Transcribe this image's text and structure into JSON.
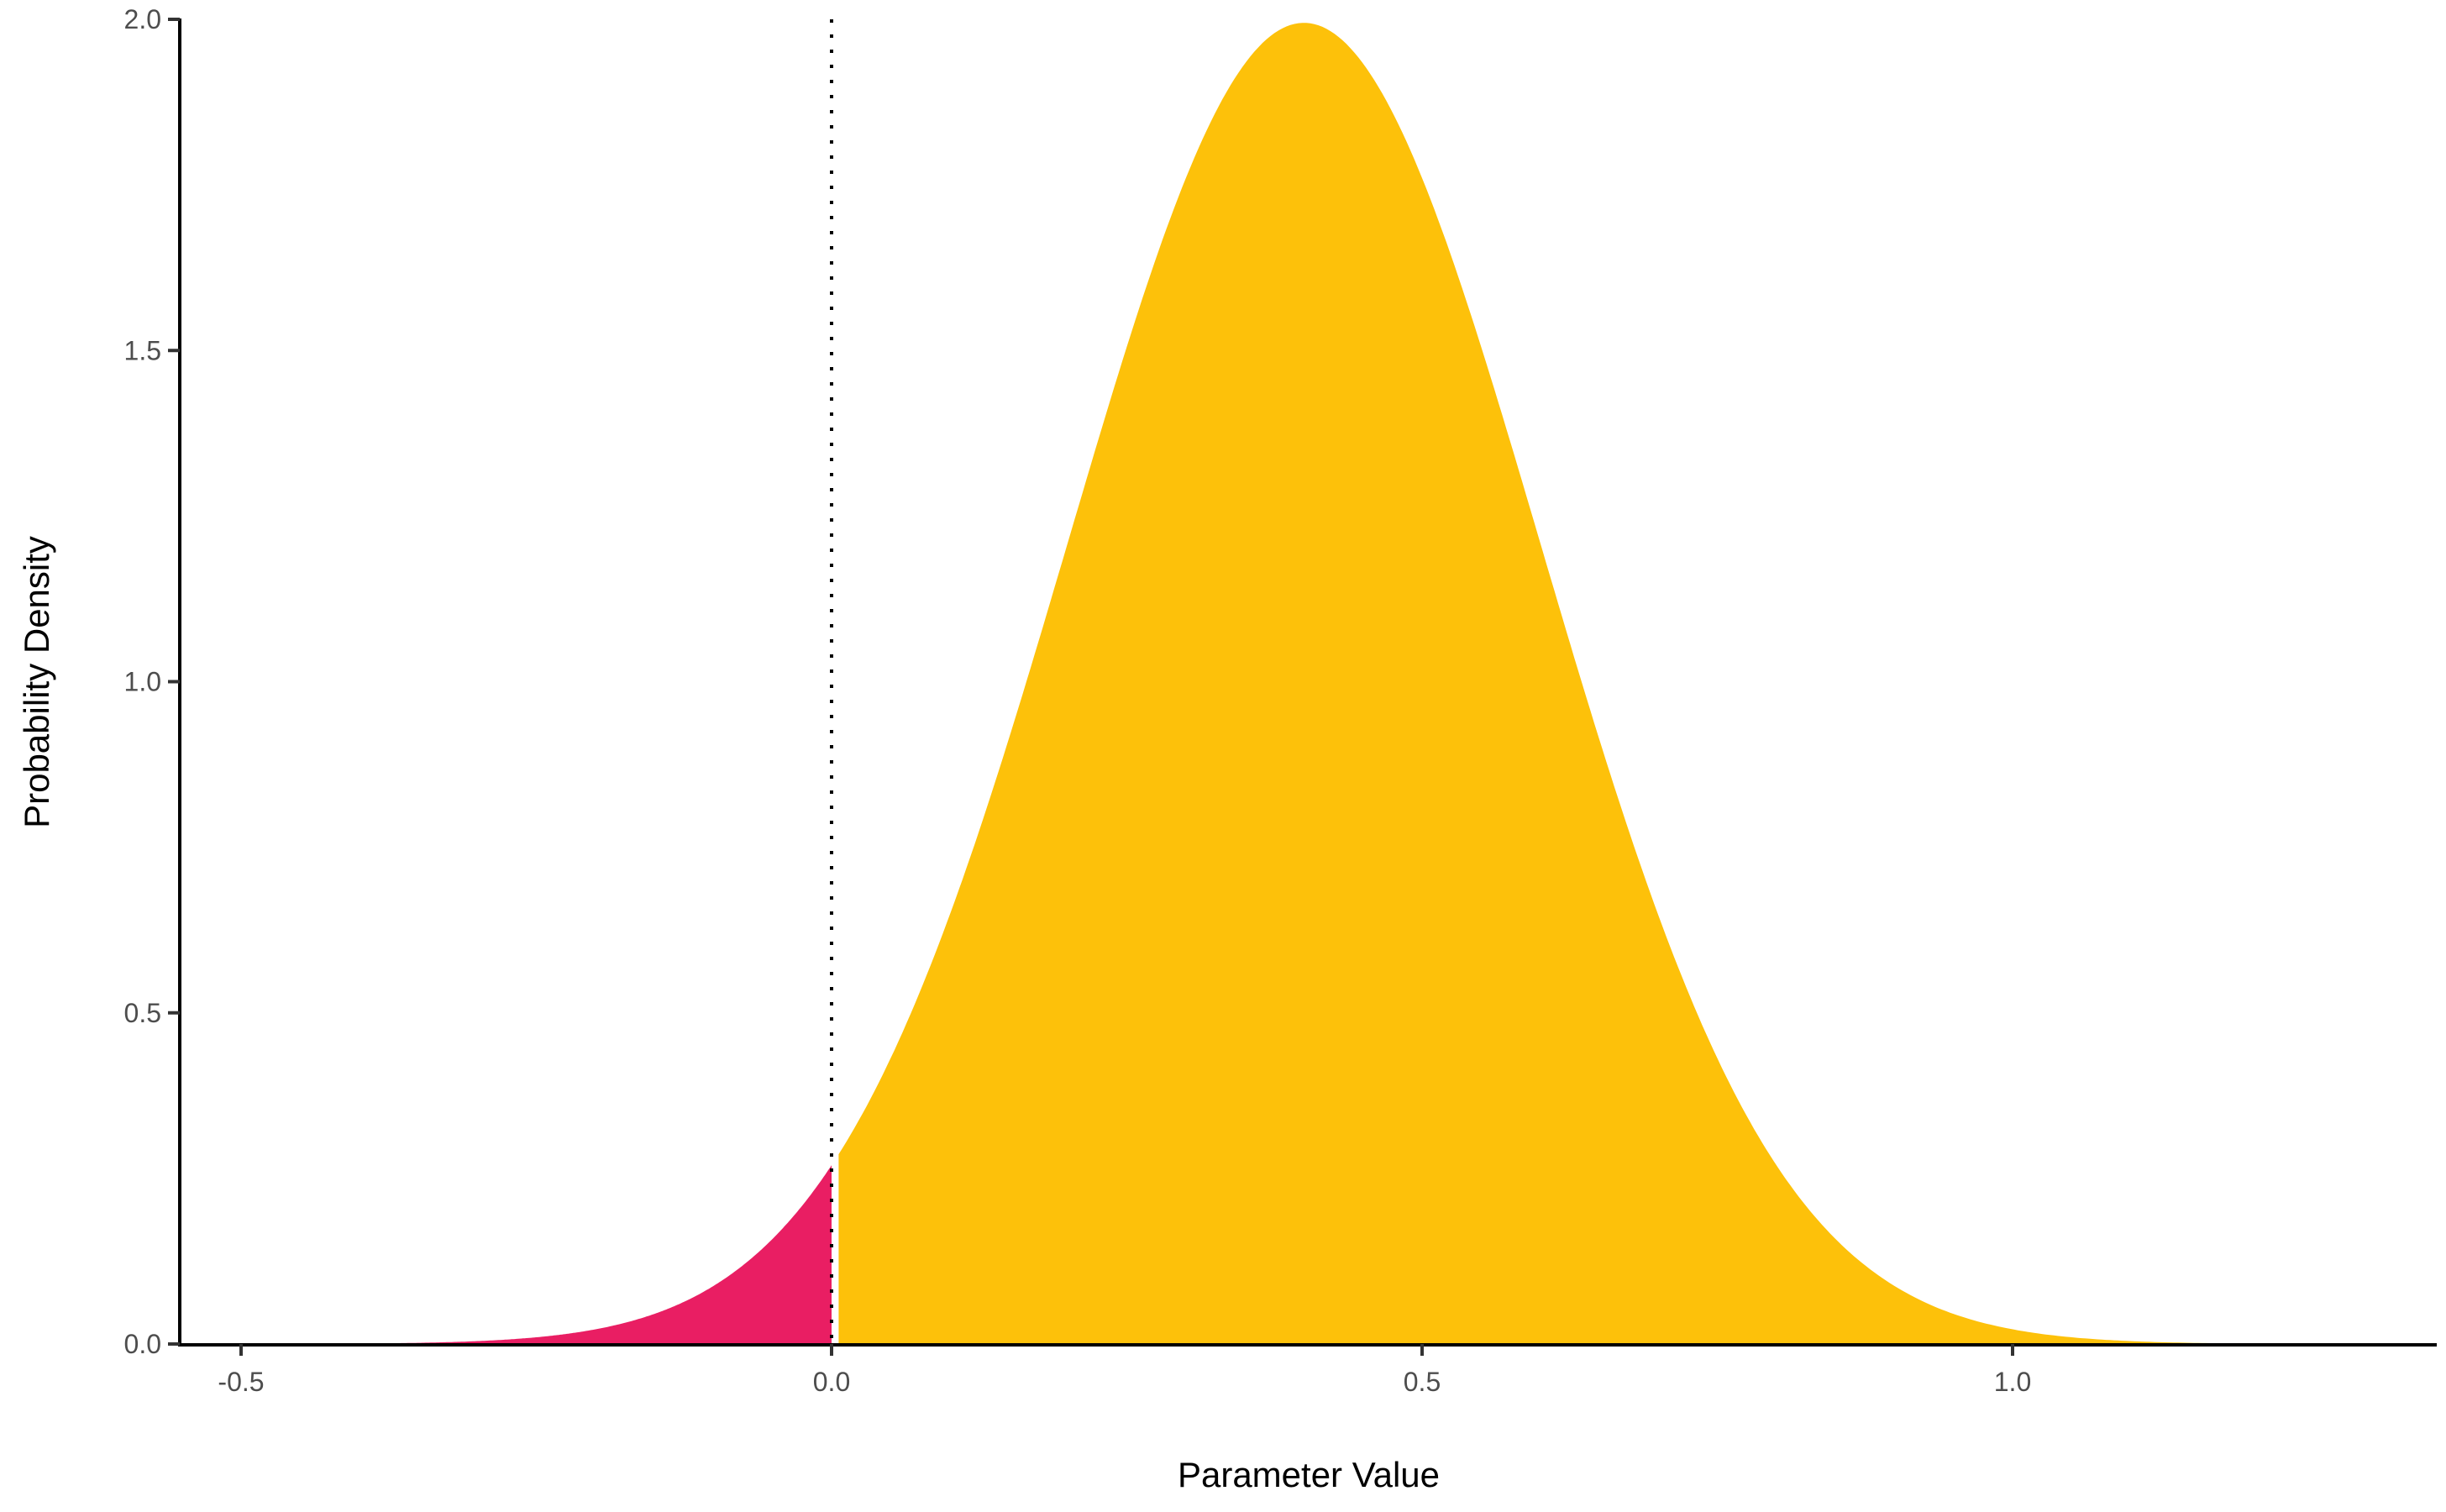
{
  "chart_data": {
    "type": "area",
    "title": "",
    "xlabel": "Parameter Value",
    "ylabel": "Probability Density",
    "xlim": [
      -0.55,
      1.36
    ],
    "ylim": [
      0,
      2.0
    ],
    "x_ticks": [
      -0.5,
      0.0,
      0.5,
      1.0
    ],
    "x_tick_labels": [
      "-0.5",
      "0.0",
      "0.5",
      "1.0"
    ],
    "y_ticks": [
      0.0,
      0.5,
      1.0,
      1.5,
      2.0
    ],
    "y_tick_labels": [
      "0.0",
      "0.5",
      "1.0",
      "1.5",
      "2.0"
    ],
    "grid": false,
    "distribution": {
      "family": "normal",
      "mean": 0.4,
      "sd": 0.2
    },
    "reference_line": {
      "x": 0.0,
      "style": "dotted"
    },
    "regions": [
      {
        "range": [
          -0.55,
          0.0
        ],
        "color": "#E91E63"
      },
      {
        "range": [
          0.0,
          1.36
        ],
        "color": "#FDC10A"
      }
    ]
  }
}
